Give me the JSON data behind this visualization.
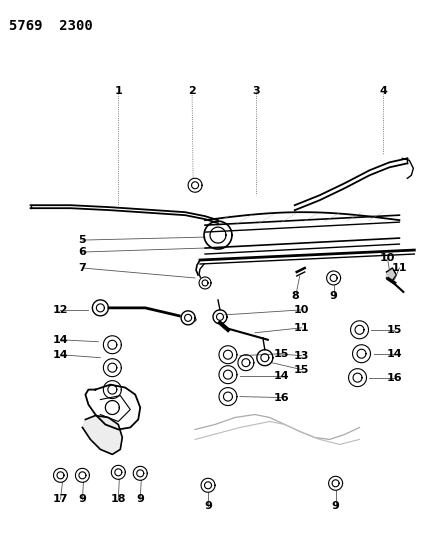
{
  "title": "5769  2300",
  "bg": "#ffffff",
  "lc": "#000000",
  "tc": "#000000",
  "fig_w": 4.28,
  "fig_h": 5.33,
  "dpi": 100
}
